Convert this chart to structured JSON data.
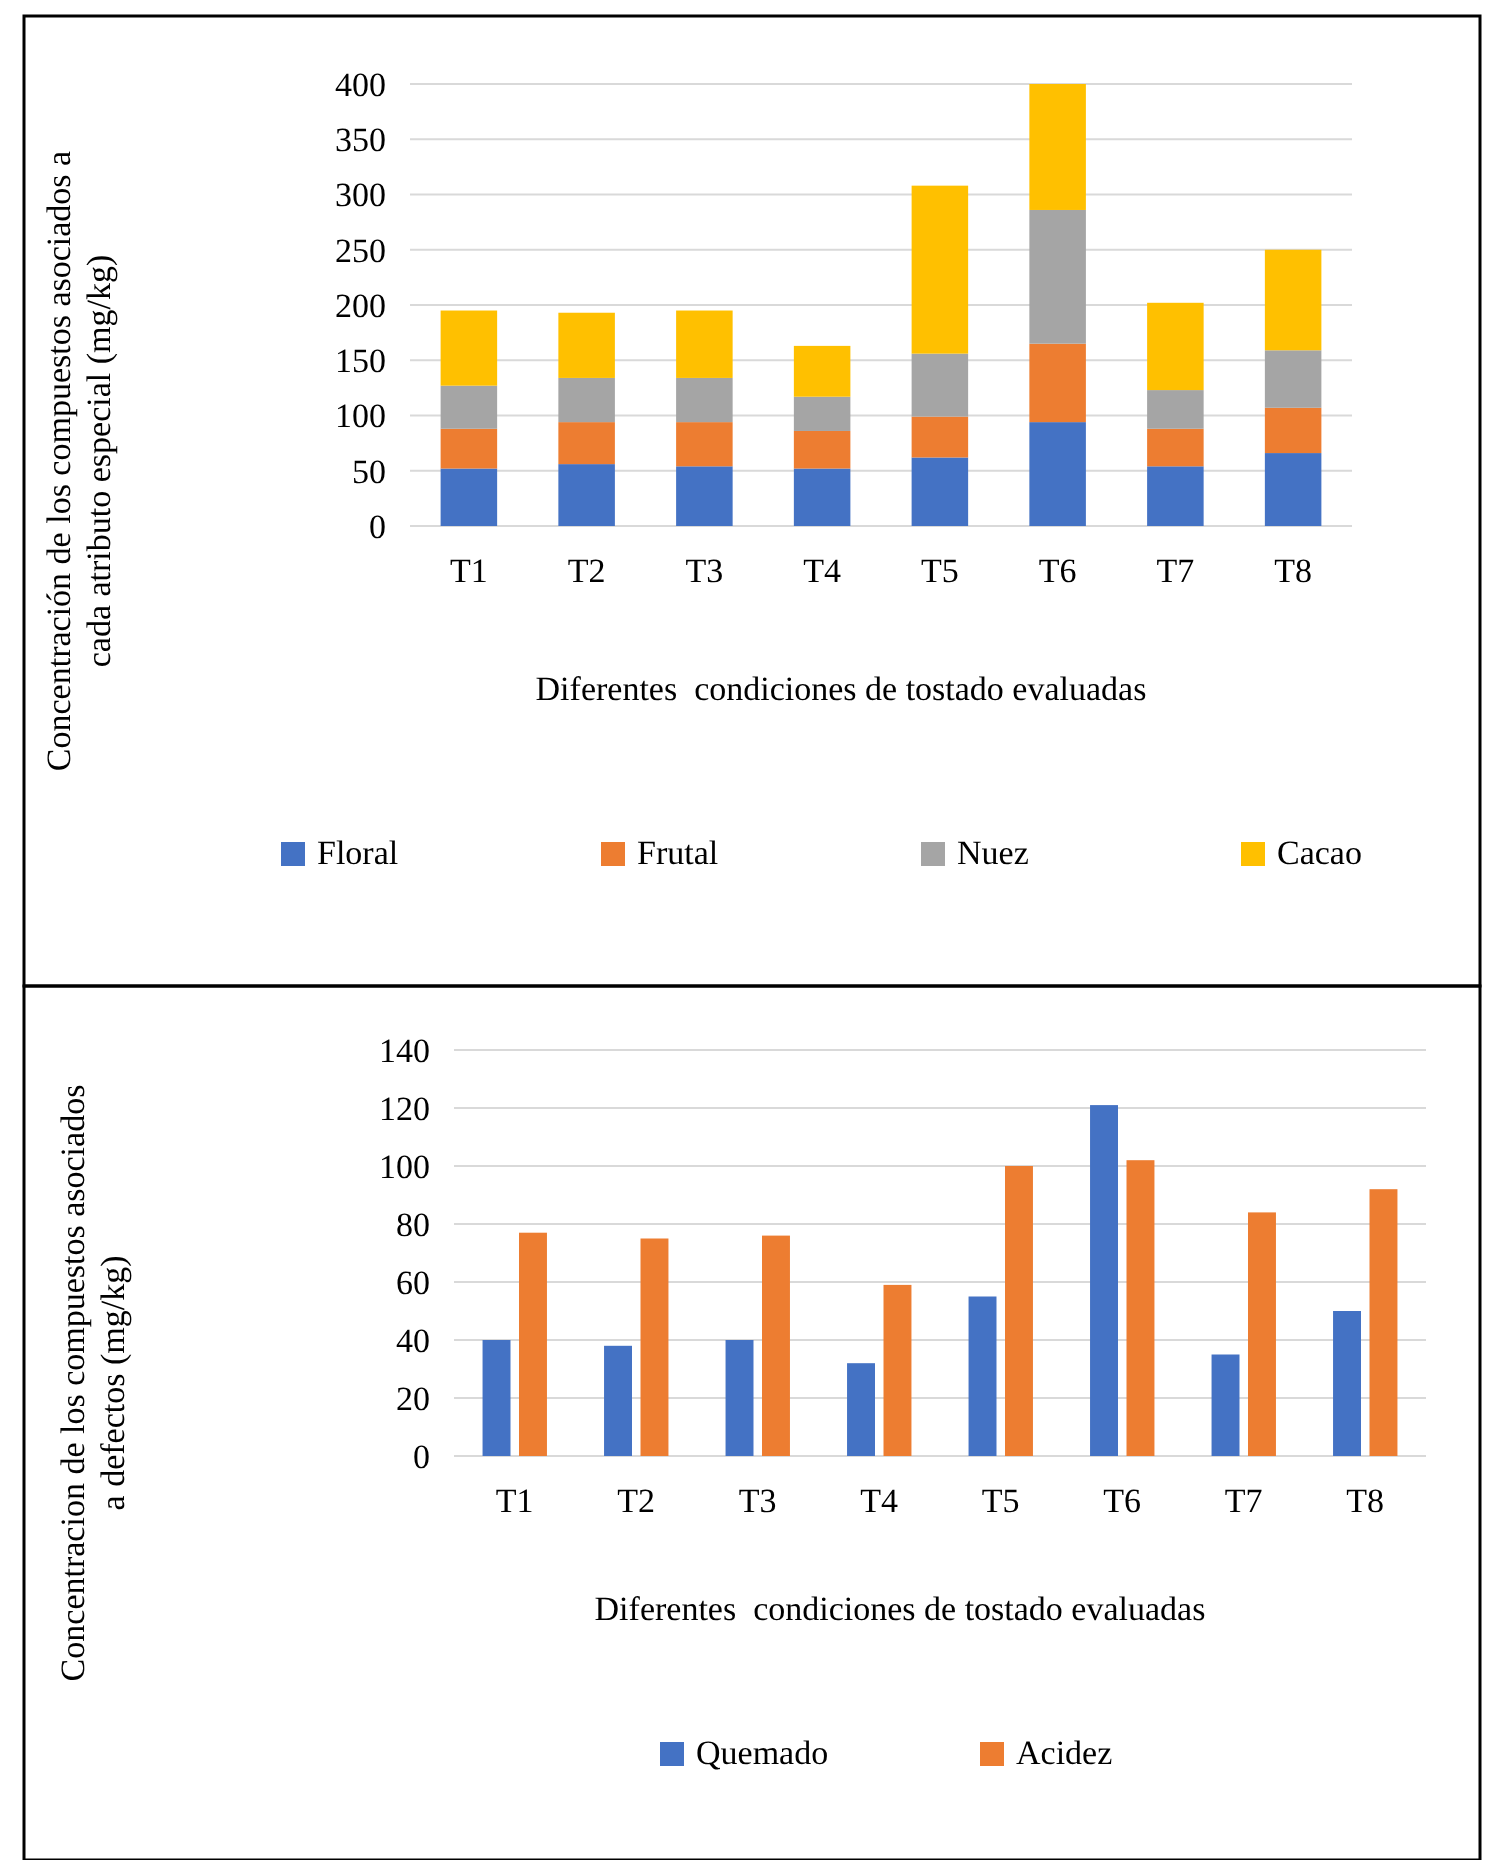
{
  "chart_data": [
    {
      "type": "bar",
      "stacked": true,
      "categories": [
        "T1",
        "T2",
        "T3",
        "T4",
        "T5",
        "T6",
        "T7",
        "T8"
      ],
      "xlabel": "Diferentes  condiciones de tostado evaluadas",
      "ylabel": "Concentración de los compuestos asociados a cada atributo especial (mg/kg)",
      "ylim": [
        0,
        400
      ],
      "yticks": [
        0,
        50,
        100,
        150,
        200,
        250,
        300,
        350,
        400
      ],
      "grid": "y",
      "legend": "bottom",
      "series": [
        {
          "name": "Floral",
          "color": "#4472c4",
          "values": [
            52,
            56,
            54,
            52,
            62,
            94,
            54,
            66
          ]
        },
        {
          "name": "Frutal",
          "color": "#ed7d31",
          "values": [
            36,
            38,
            40,
            34,
            37,
            71,
            34,
            41
          ]
        },
        {
          "name": "Nuez",
          "color": "#a5a5a5",
          "values": [
            39,
            40,
            40,
            31,
            57,
            121,
            35,
            52
          ]
        },
        {
          "name": "Cacao",
          "color": "#ffc000",
          "values": [
            68,
            59,
            61,
            46,
            152,
            114,
            79,
            91
          ]
        }
      ]
    },
    {
      "type": "bar",
      "categories": [
        "T1",
        "T2",
        "T3",
        "T4",
        "T5",
        "T6",
        "T7",
        "T8"
      ],
      "xlabel": "Diferentes  condiciones de tostado evaluadas",
      "ylabel": "Concentracion de los compuestos asociados a defectos (mg/kg)",
      "ylim": [
        0,
        140
      ],
      "yticks": [
        0,
        20,
        40,
        60,
        80,
        100,
        120,
        140
      ],
      "grid": "y",
      "legend": "bottom",
      "series": [
        {
          "name": "Quemado",
          "color": "#4472c4",
          "values": [
            40,
            38,
            40,
            32,
            55,
            121,
            35,
            50
          ]
        },
        {
          "name": "Acidez",
          "color": "#ed7d31",
          "values": [
            77,
            75,
            76,
            59,
            100,
            102,
            84,
            92
          ]
        }
      ]
    }
  ]
}
